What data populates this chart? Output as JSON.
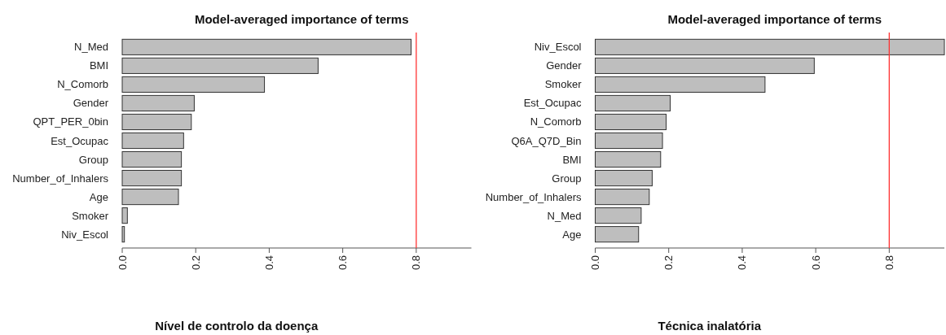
{
  "chart_data": [
    {
      "type": "bar",
      "orientation": "horizontal",
      "title": "Model-averaged importance of terms",
      "categories": [
        "N_Med",
        "BMI",
        "N_Comorb",
        "Gender",
        "QPT_PER_0bin",
        "Est_Ocupac",
        "Group",
        "Number_of_Inhalers",
        "Age",
        "Smoker",
        "Niv_Escol"
      ],
      "values": [
        0.786,
        0.533,
        0.387,
        0.196,
        0.188,
        0.167,
        0.161,
        0.161,
        0.153,
        0.014,
        0.006
      ],
      "color": "#bebebe",
      "xlim": [
        0,
        0.95
      ],
      "xticks": [
        {
          "value": 0,
          "label": "0.0"
        },
        0.2,
        0.4,
        0.6,
        0.8
      ],
      "ref_lines": [
        {
          "axis": "x",
          "value": 0.8,
          "color": "#ff3333"
        }
      ],
      "annotations": [
        "Nível de controlo da doença"
      ]
    },
    {
      "type": "bar",
      "orientation": "horizontal",
      "title": "Model-averaged importance of terms",
      "categories": [
        "Niv_Escol",
        "Gender",
        "Smoker",
        "Est_Ocupac",
        "N_Comorb",
        "Q6A_Q7D_Bin",
        "BMI",
        "Group",
        "Number_of_Inhalers",
        "N_Med",
        "Age"
      ],
      "values": [
        0.95,
        0.596,
        0.462,
        0.204,
        0.193,
        0.183,
        0.178,
        0.155,
        0.147,
        0.125,
        0.118
      ],
      "color": "#bebebe",
      "xlim": [
        0,
        0.95
      ],
      "xticks": [
        {
          "value": 0,
          "label": "0.0"
        },
        0.2,
        0.4,
        0.6,
        0.8
      ],
      "ref_lines": [
        {
          "axis": "x",
          "value": 0.8,
          "color": "#ff3333"
        }
      ],
      "annotations": [
        "Técnica inalatória"
      ]
    }
  ]
}
